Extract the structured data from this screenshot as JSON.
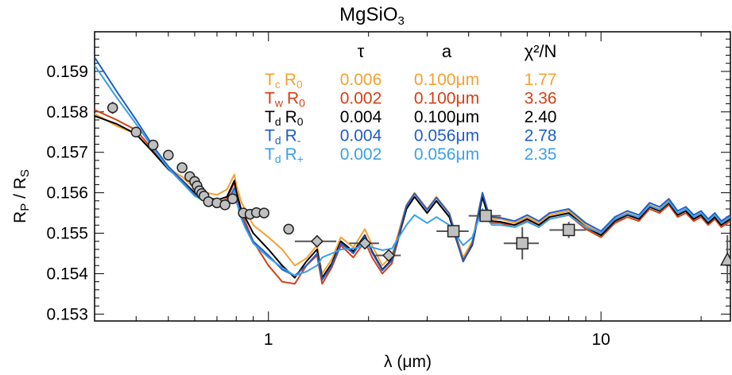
{
  "chart_data": {
    "type": "line",
    "title": "MgSiO",
    "title_sub": "3",
    "xlabel": "λ (μm)",
    "ylabel": {
      "main": "R",
      "sub1": "P",
      "mid": " / R",
      "sub2": "S"
    },
    "xscale": "log",
    "xlim": [
      0.3,
      24.5
    ],
    "ylim": [
      0.15283,
      0.15998
    ],
    "x_ticks": [
      1,
      10
    ],
    "y_ticks": [
      0.153,
      0.154,
      0.155,
      0.156,
      0.157,
      0.158,
      0.159
    ],
    "y_tick_labels": [
      "0.153",
      "0.154",
      "0.155",
      "0.156",
      "0.157",
      "0.158",
      "0.159"
    ],
    "x_tick_labels": [
      "1",
      "10"
    ],
    "grid": false,
    "legend_placement": "top-center",
    "legend_headers": {
      "tau": "τ",
      "a": "a",
      "chi": "χ²/N"
    },
    "series": [
      {
        "label": "T",
        "label_sub": "c",
        "r_label": "R",
        "r_sub": "0",
        "tau": "0.006",
        "a": "0.100μm",
        "chi2": "1.77",
        "color": "#f5a030",
        "x": [
          0.3,
          0.35,
          0.4,
          0.45,
          0.5,
          0.55,
          0.6,
          0.65,
          0.7,
          0.75,
          0.79,
          0.8,
          0.83,
          0.85,
          0.9,
          1.0,
          1.1,
          1.2,
          1.3,
          1.4,
          1.45,
          1.55,
          1.65,
          1.8,
          1.95,
          2.05,
          2.2,
          2.35,
          2.6,
          2.75,
          3.0,
          3.2,
          3.5,
          3.85,
          4.1,
          4.4,
          4.55,
          4.7,
          5.0,
          5.5,
          6.0,
          6.5,
          7.0,
          8.0,
          9.0,
          10.0,
          11.0,
          12.0,
          13.0,
          14.0,
          15.0,
          16.0,
          17.0,
          18.0,
          19.0,
          20.0,
          21.0,
          22.0,
          23.0,
          24.5
        ],
        "y": [
          0.15795,
          0.15765,
          0.15745,
          0.157,
          0.1566,
          0.1564,
          0.1561,
          0.156,
          0.15595,
          0.15608,
          0.15645,
          0.1562,
          0.15575,
          0.1556,
          0.1552,
          0.1549,
          0.1546,
          0.1542,
          0.15438,
          0.1547,
          0.154,
          0.15435,
          0.1549,
          0.15465,
          0.1551,
          0.1547,
          0.1542,
          0.15445,
          0.1557,
          0.156,
          0.1556,
          0.1559,
          0.1555,
          0.1544,
          0.1548,
          0.156,
          0.1556,
          0.15535,
          0.15535,
          0.15525,
          0.1554,
          0.15525,
          0.15545,
          0.15555,
          0.1552,
          0.155,
          0.15535,
          0.1555,
          0.1554,
          0.1557,
          0.1556,
          0.1558,
          0.1555,
          0.1556,
          0.1554,
          0.1555,
          0.1553,
          0.15545,
          0.15525,
          0.1554
        ]
      },
      {
        "label": "T",
        "label_sub": "w",
        "r_label": "R",
        "r_sub": "0",
        "tau": "0.002",
        "a": "0.100μm",
        "chi2": "3.36",
        "color": "#d44015",
        "x": [
          0.3,
          0.35,
          0.4,
          0.45,
          0.5,
          0.55,
          0.6,
          0.65,
          0.7,
          0.75,
          0.79,
          0.8,
          0.83,
          0.85,
          0.9,
          1.0,
          1.1,
          1.2,
          1.3,
          1.4,
          1.45,
          1.55,
          1.65,
          1.8,
          1.95,
          2.05,
          2.2,
          2.35,
          2.6,
          2.75,
          3.0,
          3.2,
          3.5,
          3.85,
          4.1,
          4.4,
          4.55,
          4.7,
          5.0,
          5.5,
          6.0,
          6.5,
          7.0,
          8.0,
          9.0,
          10.0,
          11.0,
          12.0,
          13.0,
          14.0,
          15.0,
          16.0,
          17.0,
          18.0,
          19.0,
          20.0,
          21.0,
          22.0,
          23.0,
          24.5
        ],
        "y": [
          0.15805,
          0.1578,
          0.15755,
          0.15705,
          0.15662,
          0.15632,
          0.15598,
          0.15585,
          0.15575,
          0.15585,
          0.15625,
          0.156,
          0.1555,
          0.1553,
          0.1548,
          0.1542,
          0.1538,
          0.15375,
          0.1542,
          0.15445,
          0.15375,
          0.15415,
          0.1547,
          0.1544,
          0.1548,
          0.1544,
          0.154,
          0.15425,
          0.1556,
          0.1559,
          0.1555,
          0.1558,
          0.1554,
          0.1543,
          0.1547,
          0.1559,
          0.1555,
          0.15525,
          0.15525,
          0.15515,
          0.1553,
          0.15515,
          0.15535,
          0.15545,
          0.1551,
          0.1549,
          0.15525,
          0.1554,
          0.1553,
          0.1556,
          0.1555,
          0.1557,
          0.1554,
          0.1555,
          0.1553,
          0.1554,
          0.1552,
          0.15535,
          0.15515,
          0.1553
        ]
      },
      {
        "label": "T",
        "label_sub": "d",
        "r_label": "R",
        "r_sub": "0",
        "tau": "0.004",
        "a": "0.100μm",
        "chi2": "2.40",
        "color": "#000000",
        "x": [
          0.3,
          0.35,
          0.4,
          0.45,
          0.5,
          0.55,
          0.6,
          0.65,
          0.7,
          0.75,
          0.79,
          0.8,
          0.83,
          0.85,
          0.9,
          1.0,
          1.1,
          1.2,
          1.3,
          1.4,
          1.45,
          1.55,
          1.65,
          1.8,
          1.95,
          2.05,
          2.2,
          2.35,
          2.6,
          2.75,
          3.0,
          3.2,
          3.5,
          3.85,
          4.1,
          4.4,
          4.55,
          4.7,
          5.0,
          5.5,
          6.0,
          6.5,
          7.0,
          8.0,
          9.0,
          10.0,
          11.0,
          12.0,
          13.0,
          14.0,
          15.0,
          16.0,
          17.0,
          18.0,
          19.0,
          20.0,
          21.0,
          22.0,
          23.0,
          24.5
        ],
        "y": [
          0.1579,
          0.1577,
          0.15745,
          0.157,
          0.15658,
          0.1563,
          0.156,
          0.1559,
          0.15582,
          0.1559,
          0.1563,
          0.15605,
          0.15555,
          0.1554,
          0.155,
          0.1546,
          0.1542,
          0.1539,
          0.1543,
          0.1546,
          0.1539,
          0.15425,
          0.1548,
          0.15455,
          0.15495,
          0.15455,
          0.1541,
          0.15435,
          0.1556,
          0.1559,
          0.1555,
          0.1558,
          0.1554,
          0.15432,
          0.15472,
          0.1559,
          0.1555,
          0.1553,
          0.15528,
          0.1552,
          0.15535,
          0.1552,
          0.1554,
          0.1555,
          0.15515,
          0.15495,
          0.1553,
          0.15545,
          0.15535,
          0.15565,
          0.15555,
          0.15575,
          0.15545,
          0.15555,
          0.15535,
          0.15545,
          0.15525,
          0.1554,
          0.1552,
          0.15535
        ]
      },
      {
        "label": "T",
        "label_sub": "d",
        "r_label": "R",
        "r_sub": "-",
        "tau": "0.004",
        "a": "0.056μm",
        "chi2": "2.78",
        "color": "#1f5fc8",
        "x": [
          0.3,
          0.35,
          0.4,
          0.45,
          0.5,
          0.55,
          0.6,
          0.65,
          0.7,
          0.75,
          0.79,
          0.8,
          0.83,
          0.85,
          0.9,
          1.0,
          1.1,
          1.2,
          1.3,
          1.4,
          1.45,
          1.55,
          1.65,
          1.8,
          1.95,
          2.05,
          2.2,
          2.35,
          2.6,
          2.75,
          3.0,
          3.2,
          3.5,
          3.85,
          4.1,
          4.4,
          4.55,
          4.7,
          5.0,
          5.5,
          6.0,
          6.5,
          7.0,
          8.0,
          9.0,
          10.0,
          11.0,
          12.0,
          13.0,
          14.0,
          15.0,
          16.0,
          17.0,
          18.0,
          19.0,
          20.0,
          21.0,
          22.0,
          23.0,
          24.5
        ],
        "y": [
          0.15935,
          0.1585,
          0.1578,
          0.15715,
          0.15665,
          0.1563,
          0.15595,
          0.1558,
          0.15568,
          0.15575,
          0.15612,
          0.15585,
          0.1554,
          0.1552,
          0.1548,
          0.15445,
          0.1541,
          0.15395,
          0.1542,
          0.1545,
          0.15385,
          0.1542,
          0.15475,
          0.1545,
          0.15492,
          0.15452,
          0.15408,
          0.15432,
          0.15568,
          0.15598,
          0.15558,
          0.15588,
          0.15548,
          0.1543,
          0.15475,
          0.156,
          0.1556,
          0.1554,
          0.15538,
          0.1553,
          0.15545,
          0.1553,
          0.1555,
          0.1556,
          0.15525,
          0.15505,
          0.1554,
          0.15555,
          0.15545,
          0.15575,
          0.15565,
          0.15585,
          0.15555,
          0.15565,
          0.15545,
          0.15555,
          0.15535,
          0.1555,
          0.1553,
          0.15545
        ]
      },
      {
        "label": "T",
        "label_sub": "d",
        "r_label": "R",
        "r_sub": "+",
        "tau": "0.002",
        "a": "0.056μm",
        "chi2": "2.35",
        "color": "#3aa0e8",
        "x": [
          0.3,
          0.35,
          0.4,
          0.45,
          0.5,
          0.55,
          0.6,
          0.65,
          0.7,
          0.75,
          0.79,
          0.8,
          0.83,
          0.85,
          0.9,
          1.0,
          1.1,
          1.2,
          1.3,
          1.4,
          1.45,
          1.55,
          1.65,
          1.8,
          1.95,
          2.05,
          2.2,
          2.35,
          2.6,
          2.75,
          3.0,
          3.2,
          3.5,
          3.85,
          4.1,
          4.4,
          4.55,
          4.7,
          5.0,
          5.5,
          6.0,
          6.5,
          7.0,
          8.0,
          9.0,
          10.0,
          11.0,
          12.0,
          13.0,
          14.0,
          15.0,
          16.0,
          17.0,
          18.0,
          19.0,
          20.0,
          21.0,
          22.0,
          23.0,
          24.5
        ],
        "y": [
          0.15915,
          0.15835,
          0.1577,
          0.1571,
          0.1566,
          0.15625,
          0.15592,
          0.15578,
          0.15565,
          0.1557,
          0.15605,
          0.1558,
          0.15535,
          0.15515,
          0.15475,
          0.1544,
          0.15415,
          0.15395,
          0.15405,
          0.1542,
          0.1544,
          0.1545,
          0.1546,
          0.15462,
          0.1547,
          0.15465,
          0.15458,
          0.15462,
          0.1552,
          0.15545,
          0.15525,
          0.1554,
          0.1552,
          0.1547,
          0.1549,
          0.1556,
          0.15535,
          0.1552,
          0.1552,
          0.15515,
          0.15528,
          0.15515,
          0.15535,
          0.15545,
          0.15515,
          0.155,
          0.15535,
          0.15548,
          0.1554,
          0.15568,
          0.15558,
          0.15578,
          0.1555,
          0.1556,
          0.1554,
          0.1555,
          0.1553,
          0.15545,
          0.15525,
          0.1554
        ]
      }
    ],
    "observations": [
      {
        "marker": "circle",
        "x": [
          0.34,
          0.4,
          0.45,
          0.5,
          0.55,
          0.58,
          0.6,
          0.61,
          0.62,
          0.63,
          0.64,
          0.66,
          0.7,
          0.74,
          0.78,
          0.84,
          0.88,
          0.92,
          0.97,
          1.15
        ],
        "y": [
          0.1581,
          0.1575,
          0.15718,
          0.15693,
          0.15662,
          0.1564,
          0.15628,
          0.15617,
          0.15605,
          0.15598,
          0.15592,
          0.15578,
          0.15575,
          0.1557,
          0.15585,
          0.1555,
          0.15547,
          0.15551,
          0.1555,
          0.1551
        ],
        "yerr": [
          0.00015,
          8e-05,
          8e-05,
          8e-05,
          0.0001,
          0.0001,
          0.0001,
          0.0001,
          0.0001,
          0.00012,
          0.00012,
          0.00012,
          8e-05,
          8e-05,
          8e-05,
          6e-05,
          6e-05,
          6e-05,
          6e-05,
          0.0001
        ]
      },
      {
        "marker": "diamond",
        "x": [
          1.4,
          1.95,
          2.3
        ],
        "y": [
          0.1548,
          0.15475,
          0.15445
        ],
        "xerr": [
          0.2,
          0.2,
          0.2
        ],
        "yerr": [
          0.0001,
          0.0001,
          0.00015
        ]
      },
      {
        "marker": "square",
        "x": [
          3.6,
          4.5,
          5.8,
          8.0
        ],
        "y": [
          0.15505,
          0.15543,
          0.15475,
          0.15508
        ],
        "xerr": [
          0.4,
          0.5,
          0.7,
          1.0
        ],
        "yerr": [
          0.0001,
          0.0001,
          0.0004,
          0.0002
        ]
      },
      {
        "marker": "triangle",
        "x": [
          24.0
        ],
        "y": [
          0.15435
        ],
        "yerr": [
          0.0006
        ]
      }
    ]
  }
}
